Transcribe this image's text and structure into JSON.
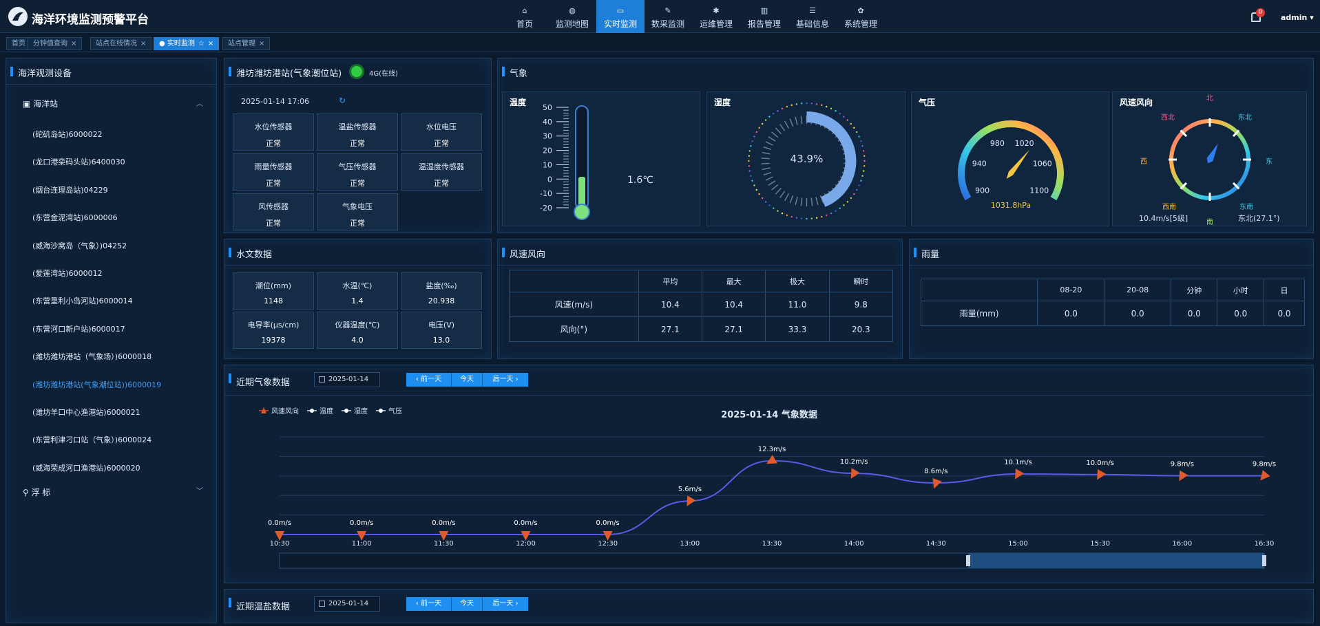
{
  "app": {
    "title": "海洋环境监测预警平台",
    "user": "admin",
    "notifications": "0"
  },
  "nav": [
    {
      "label": "首页",
      "icon": "home-icon"
    },
    {
      "label": "监测地图",
      "icon": "globe-icon"
    },
    {
      "label": "实时监测",
      "icon": "monitor-icon",
      "active": true
    },
    {
      "label": "数采监测",
      "icon": "edit-icon"
    },
    {
      "label": "运维管理",
      "icon": "gear-icon"
    },
    {
      "label": "报告管理",
      "icon": "book-icon"
    },
    {
      "label": "基础信息",
      "icon": "database-icon"
    },
    {
      "label": "系统管理",
      "icon": "settings-icon"
    }
  ],
  "tabs": [
    {
      "label": "首页"
    },
    {
      "label": "分钟值查询"
    },
    {
      "label": "站点在线情况"
    },
    {
      "label": "实时监测",
      "active": true
    },
    {
      "label": "站点管理"
    }
  ],
  "sidebar": {
    "title": "海洋观测设备",
    "group_ocean": "海洋站",
    "group_buoy": "浮 标",
    "items": [
      "(砣矶岛站)6000022",
      "(龙口港栾码头站)6400030",
      "(烟台连理岛站)04229",
      "(东营金泥湾站)6000006",
      "(威海沙窝岛（气象）)04252",
      "(爱莲湾站)6000012",
      "(东营垦利小岛河站)6000014",
      "(东营河口新户站)6000017",
      "(潍坊潍坊港站（气象场）)6000018",
      "(潍坊潍坊港站(气象潮位站))6000019",
      "(潍坊羊口中心渔港站)6000021",
      "(东营利津刁口站（气象）)6000024",
      "(威海荣成河口渔港站)6000020"
    ],
    "active_index": 9
  },
  "station": {
    "title": "潍坊潍坊港站(气象潮位站)",
    "status": "4G(在线)",
    "datetime": "2025-01-14 17:06",
    "sensors": [
      {
        "name": "水位传感器",
        "value": "正常"
      },
      {
        "name": "温盐传感器",
        "value": "正常"
      },
      {
        "name": "水位电压",
        "value": "正常"
      },
      {
        "name": "雨量传感器",
        "value": "正常"
      },
      {
        "name": "气压传感器",
        "value": "正常"
      },
      {
        "name": "温湿度传感器",
        "value": "正常"
      },
      {
        "name": "风传感器",
        "value": "正常"
      },
      {
        "name": "气象电压",
        "value": "正常"
      }
    ]
  },
  "weather": {
    "title": "气象",
    "temp": {
      "label": "温度",
      "value": "1.6℃",
      "ticks": [
        "50",
        "40",
        "30",
        "20",
        "10",
        "0",
        "-10",
        "-20"
      ],
      "current": 1.6
    },
    "humidity": {
      "label": "湿度",
      "value": "43.9%",
      "percent": 43.9
    },
    "pressure": {
      "label": "气压",
      "value": "1031.8hPa",
      "ticks": [
        "900",
        "940",
        "980",
        "1020",
        "1060",
        "1100"
      ],
      "current": 1031.8
    },
    "wind": {
      "label": "风速风向",
      "speed": "10.4m/s[5级]",
      "direction": "东北(27.1°)",
      "angle": 27.1,
      "dirs": {
        "n": "北",
        "ne": "东北",
        "e": "东",
        "se": "东南",
        "s": "南",
        "sw": "西南",
        "w": "西",
        "nw": "西北"
      }
    }
  },
  "hydro": {
    "title": "水文数据",
    "cells": [
      {
        "name": "潮位(mm)",
        "value": "1148"
      },
      {
        "name": "水温(℃)",
        "value": "1.4"
      },
      {
        "name": "盐度(‰)",
        "value": "20.938"
      },
      {
        "name": "电导率(μs/cm)",
        "value": "19378"
      },
      {
        "name": "仪器温度(℃)",
        "value": "4.0"
      },
      {
        "name": "电压(V)",
        "value": "13.0"
      }
    ]
  },
  "wind_table": {
    "title": "风速风向",
    "headers": [
      "",
      "平均",
      "最大",
      "极大",
      "瞬时"
    ],
    "rows": [
      [
        "风速(m/s)",
        "10.4",
        "10.4",
        "11.0",
        "9.8"
      ],
      [
        "风向(°)",
        "27.1",
        "27.1",
        "33.3",
        "20.3"
      ]
    ]
  },
  "rain_table": {
    "title": "雨量",
    "headers": [
      "",
      "08-20",
      "20-08",
      "分钟",
      "小时",
      "日"
    ],
    "row": [
      "雨量(mm)",
      "0.0",
      "0.0",
      "0.0",
      "0.0",
      "0.0"
    ]
  },
  "recent_weather": {
    "title": "近期气象数据",
    "date": "2025-01-14",
    "btn_prev": "前一天",
    "btn_today": "今天",
    "btn_next": "后一天"
  },
  "recent_salinity": {
    "title": "近期温盐数据",
    "date": "2025-01-14",
    "btn_prev": "前一天",
    "btn_today": "今天",
    "btn_next": "后一天"
  },
  "chart_data": {
    "type": "line",
    "title": "2025-01-14 气象数据",
    "legend": [
      "风速风向",
      "温度",
      "湿度",
      "气压"
    ],
    "legend_position": "top-left",
    "x": [
      "10:30",
      "11:00",
      "11:30",
      "12:00",
      "12:30",
      "13:00",
      "13:30",
      "14:00",
      "14:30",
      "15:00",
      "15:30",
      "16:00",
      "16:30"
    ],
    "series": [
      {
        "name": "风速风向",
        "values": [
          0.0,
          0.0,
          0.0,
          0.0,
          0.0,
          5.6,
          12.3,
          10.2,
          8.6,
          10.1,
          10.0,
          9.8,
          9.8
        ],
        "labels": [
          "0.0m/s",
          "0.0m/s",
          "0.0m/s",
          "0.0m/s",
          "0.0m/s",
          "5.6m/s",
          "12.3m/s",
          "10.2m/s",
          "8.6m/s",
          "10.1m/s",
          "10.0m/s",
          "9.8m/s",
          "9.8m/s"
        ],
        "directions": [
          180,
          180,
          180,
          180,
          180,
          210,
          240,
          210,
          200,
          210,
          210,
          210,
          220
        ]
      }
    ],
    "ylim": [
      0,
      14
    ],
    "colors": {
      "line": "#5a5ae8",
      "marker": "#e05a2b"
    }
  }
}
